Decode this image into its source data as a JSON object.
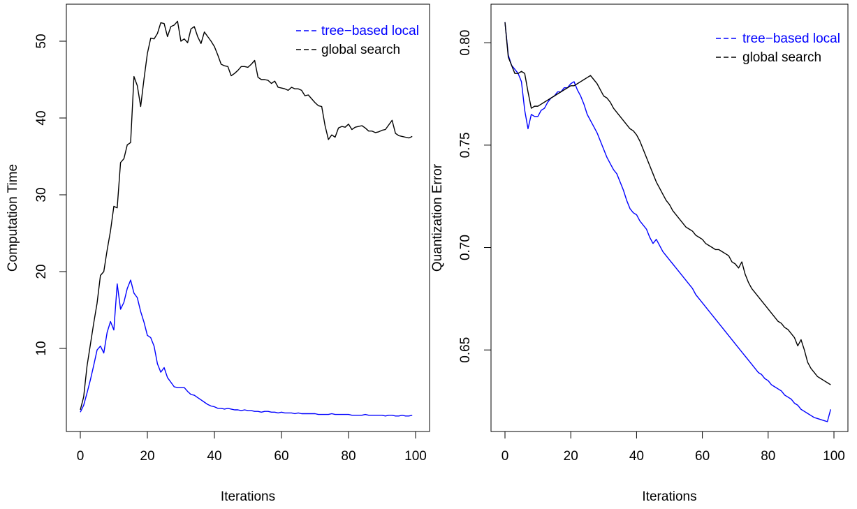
{
  "chart_data": [
    {
      "type": "line",
      "xlabel": "Iterations",
      "ylabel": "Computation Time",
      "xlim": [
        0,
        100
      ],
      "ylim": [
        1,
        53
      ],
      "xticks": [
        "0",
        "20",
        "40",
        "60",
        "80",
        "100"
      ],
      "yticks": [
        "10",
        "20",
        "30",
        "40",
        "50"
      ],
      "legend_position": "top-right",
      "legend": [
        {
          "label": "tree−based local",
          "color": "#0000ff"
        },
        {
          "label": "global search",
          "color": "#000000"
        }
      ],
      "series": [
        {
          "name": "tree−based local",
          "color": "#0000ff",
          "x": [
            0,
            1,
            2,
            3,
            4,
            5,
            6,
            7,
            8,
            9,
            10,
            11,
            12,
            13,
            14,
            15,
            16,
            17,
            18,
            19,
            20,
            21,
            22,
            23,
            24,
            25,
            26,
            27,
            28,
            29,
            30,
            31,
            32,
            33,
            34,
            35,
            36,
            37,
            38,
            39,
            40,
            41,
            42,
            43,
            44,
            45,
            46,
            47,
            48,
            49,
            50,
            51,
            52,
            53,
            54,
            55,
            56,
            57,
            58,
            59,
            60,
            61,
            62,
            63,
            64,
            65,
            66,
            67,
            68,
            69,
            70,
            71,
            72,
            73,
            74,
            75,
            76,
            77,
            78,
            79,
            80,
            81,
            82,
            83,
            84,
            85,
            86,
            87,
            88,
            89,
            90,
            91,
            92,
            93,
            94,
            95,
            96,
            97,
            98,
            99
          ],
          "y": [
            1.7,
            2.6,
            4.2,
            5.9,
            7.8,
            9.8,
            10.3,
            9.4,
            12.1,
            13.5,
            12.4,
            18.4,
            15.1,
            16.0,
            17.8,
            18.9,
            17.2,
            16.6,
            14.8,
            13.4,
            11.7,
            11.4,
            10.3,
            8.0,
            6.9,
            7.5,
            6.2,
            5.6,
            5.0,
            4.9,
            4.9,
            4.9,
            4.4,
            4.0,
            3.9,
            3.6,
            3.3,
            3.0,
            2.7,
            2.5,
            2.4,
            2.2,
            2.2,
            2.1,
            2.2,
            2.1,
            2.0,
            2.0,
            1.9,
            2.0,
            1.9,
            1.9,
            1.8,
            1.8,
            1.7,
            1.8,
            1.8,
            1.7,
            1.7,
            1.6,
            1.7,
            1.6,
            1.6,
            1.6,
            1.5,
            1.6,
            1.5,
            1.5,
            1.5,
            1.5,
            1.5,
            1.4,
            1.4,
            1.4,
            1.4,
            1.5,
            1.4,
            1.4,
            1.4,
            1.4,
            1.4,
            1.3,
            1.3,
            1.3,
            1.3,
            1.4,
            1.3,
            1.3,
            1.3,
            1.3,
            1.3,
            1.2,
            1.3,
            1.3,
            1.2,
            1.2,
            1.3,
            1.2,
            1.2,
            1.3
          ]
        },
        {
          "name": "global search",
          "color": "#000000",
          "x": [
            0,
            1,
            2,
            3,
            4,
            5,
            6,
            7,
            8,
            9,
            10,
            11,
            12,
            13,
            14,
            15,
            16,
            17,
            18,
            19,
            20,
            21,
            22,
            23,
            24,
            25,
            26,
            27,
            28,
            29,
            30,
            31,
            32,
            33,
            34,
            35,
            36,
            37,
            38,
            39,
            40,
            41,
            42,
            43,
            44,
            45,
            46,
            47,
            48,
            49,
            50,
            51,
            52,
            53,
            54,
            55,
            56,
            57,
            58,
            59,
            60,
            61,
            62,
            63,
            64,
            65,
            66,
            67,
            68,
            69,
            70,
            71,
            72,
            73,
            74,
            75,
            76,
            77,
            78,
            79,
            80,
            81,
            82,
            83,
            84,
            85,
            86,
            87,
            88,
            89,
            90,
            91,
            92,
            93,
            94,
            95,
            96,
            97,
            98,
            99
          ],
          "y": [
            2.0,
            3.7,
            7.7,
            10.5,
            13.3,
            15.9,
            19.5,
            20.0,
            22.8,
            25.3,
            28.5,
            28.3,
            34.2,
            34.7,
            36.5,
            36.8,
            45.4,
            44.2,
            41.5,
            45.1,
            48.4,
            50.4,
            50.3,
            51.0,
            52.4,
            52.3,
            50.6,
            51.9,
            52.1,
            52.6,
            50.0,
            50.3,
            49.8,
            51.6,
            51.9,
            50.6,
            49.7,
            51.2,
            50.6,
            50.0,
            49.3,
            48.2,
            47.0,
            46.8,
            46.7,
            45.5,
            45.8,
            46.2,
            46.7,
            46.7,
            46.6,
            47.0,
            47.5,
            45.3,
            45.0,
            45.0,
            44.9,
            44.5,
            44.8,
            44.0,
            43.9,
            43.8,
            43.6,
            44.0,
            43.8,
            43.8,
            43.6,
            42.9,
            43.0,
            42.5,
            42.0,
            41.6,
            41.5,
            39.0,
            37.2,
            37.8,
            37.5,
            38.7,
            38.9,
            38.8,
            39.2,
            38.5,
            38.8,
            38.9,
            39.0,
            38.7,
            38.3,
            38.3,
            38.1,
            38.2,
            38.4,
            38.5,
            39.1,
            39.7,
            38.0,
            37.7,
            37.6,
            37.5,
            37.4,
            37.6
          ]
        }
      ]
    },
    {
      "type": "line",
      "xlabel": "Iterations",
      "ylabel": "Quantization Error",
      "xlim": [
        0,
        100
      ],
      "ylim": [
        0.617,
        0.812
      ],
      "xticks": [
        "0",
        "20",
        "40",
        "60",
        "80",
        "100"
      ],
      "yticks": [
        "0.65",
        "0.70",
        "0.75",
        "0.80"
      ],
      "legend_position": "top-right",
      "legend": [
        {
          "label": "tree−based local",
          "color": "#0000ff"
        },
        {
          "label": "global search",
          "color": "#000000"
        }
      ],
      "series": [
        {
          "name": "tree−based local",
          "color": "#0000ff",
          "x": [
            0,
            1,
            2,
            3,
            4,
            5,
            6,
            7,
            8,
            9,
            10,
            11,
            12,
            13,
            14,
            15,
            16,
            17,
            18,
            19,
            20,
            21,
            22,
            23,
            24,
            25,
            26,
            27,
            28,
            29,
            30,
            31,
            32,
            33,
            34,
            35,
            36,
            37,
            38,
            39,
            40,
            41,
            42,
            43,
            44,
            45,
            46,
            47,
            48,
            49,
            50,
            51,
            52,
            53,
            54,
            55,
            56,
            57,
            58,
            59,
            60,
            61,
            62,
            63,
            64,
            65,
            66,
            67,
            68,
            69,
            70,
            71,
            72,
            73,
            74,
            75,
            76,
            77,
            78,
            79,
            80,
            81,
            82,
            83,
            84,
            85,
            86,
            87,
            88,
            89,
            90,
            91,
            92,
            93,
            94,
            95,
            96,
            97,
            98,
            99
          ],
          "y": [
            0.81,
            0.794,
            0.789,
            0.787,
            0.785,
            0.781,
            0.767,
            0.758,
            0.765,
            0.764,
            0.764,
            0.767,
            0.768,
            0.771,
            0.773,
            0.774,
            0.776,
            0.776,
            0.778,
            0.778,
            0.78,
            0.781,
            0.777,
            0.774,
            0.77,
            0.765,
            0.762,
            0.759,
            0.756,
            0.752,
            0.748,
            0.744,
            0.741,
            0.738,
            0.736,
            0.732,
            0.728,
            0.723,
            0.719,
            0.717,
            0.716,
            0.713,
            0.711,
            0.709,
            0.705,
            0.702,
            0.704,
            0.701,
            0.698,
            0.696,
            0.694,
            0.692,
            0.69,
            0.688,
            0.686,
            0.684,
            0.682,
            0.68,
            0.677,
            0.675,
            0.673,
            0.671,
            0.669,
            0.667,
            0.665,
            0.663,
            0.661,
            0.659,
            0.657,
            0.655,
            0.653,
            0.651,
            0.649,
            0.647,
            0.645,
            0.643,
            0.641,
            0.639,
            0.638,
            0.636,
            0.635,
            0.633,
            0.632,
            0.631,
            0.63,
            0.628,
            0.627,
            0.626,
            0.624,
            0.623,
            0.621,
            0.62,
            0.619,
            0.618,
            0.617,
            0.6165,
            0.616,
            0.6155,
            0.615,
            0.621
          ]
        },
        {
          "name": "global search",
          "color": "#000000",
          "x": [
            0,
            1,
            2,
            3,
            4,
            5,
            6,
            7,
            8,
            9,
            10,
            11,
            12,
            13,
            14,
            15,
            16,
            17,
            18,
            19,
            20,
            21,
            22,
            23,
            24,
            25,
            26,
            27,
            28,
            29,
            30,
            31,
            32,
            33,
            34,
            35,
            36,
            37,
            38,
            39,
            40,
            41,
            42,
            43,
            44,
            45,
            46,
            47,
            48,
            49,
            50,
            51,
            52,
            53,
            54,
            55,
            56,
            57,
            58,
            59,
            60,
            61,
            62,
            63,
            64,
            65,
            66,
            67,
            68,
            69,
            70,
            71,
            72,
            73,
            74,
            75,
            76,
            77,
            78,
            79,
            80,
            81,
            82,
            83,
            84,
            85,
            86,
            87,
            88,
            89,
            90,
            91,
            92,
            93,
            94,
            95,
            96,
            97,
            98,
            99
          ],
          "y": [
            0.81,
            0.793,
            0.789,
            0.785,
            0.785,
            0.786,
            0.785,
            0.776,
            0.768,
            0.769,
            0.769,
            0.77,
            0.771,
            0.772,
            0.773,
            0.774,
            0.775,
            0.776,
            0.777,
            0.778,
            0.779,
            0.779,
            0.78,
            0.781,
            0.782,
            0.783,
            0.784,
            0.782,
            0.78,
            0.777,
            0.774,
            0.773,
            0.771,
            0.768,
            0.766,
            0.764,
            0.762,
            0.76,
            0.758,
            0.757,
            0.755,
            0.752,
            0.748,
            0.744,
            0.74,
            0.736,
            0.732,
            0.729,
            0.726,
            0.723,
            0.721,
            0.718,
            0.716,
            0.714,
            0.712,
            0.71,
            0.709,
            0.708,
            0.706,
            0.705,
            0.704,
            0.702,
            0.701,
            0.7,
            0.699,
            0.699,
            0.698,
            0.697,
            0.696,
            0.693,
            0.692,
            0.69,
            0.693,
            0.687,
            0.683,
            0.68,
            0.678,
            0.676,
            0.674,
            0.672,
            0.67,
            0.668,
            0.666,
            0.664,
            0.663,
            0.661,
            0.66,
            0.658,
            0.656,
            0.652,
            0.655,
            0.65,
            0.644,
            0.641,
            0.639,
            0.637,
            0.636,
            0.635,
            0.634,
            0.633
          ]
        }
      ]
    }
  ]
}
